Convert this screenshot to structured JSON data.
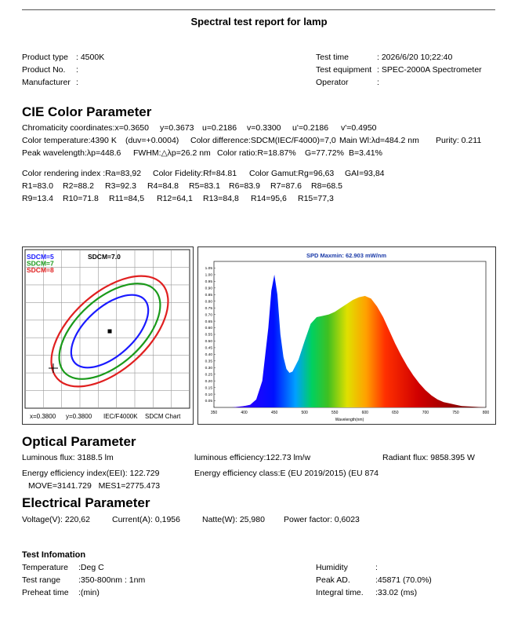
{
  "header": {
    "title": "Spectral test report for lamp"
  },
  "info": {
    "rows": [
      [
        "Product type",
        ": 4500K",
        "Test time",
        ": 2026/6/20 10;22:40"
      ],
      [
        "Product No.",
        ":",
        "Test equipment",
        ": SPEC-2000A Spectrometer"
      ],
      [
        "Manufacturer",
        ":",
        "Operator",
        ":"
      ]
    ]
  },
  "cie": {
    "heading": "CIE Color Parameter",
    "lines": [
      [
        "Chromaticity coordinates:x=0.3650",
        "y=0.3673",
        "u=0.2186",
        "v=0.3300",
        "u'=0.2186",
        "v'=0.4950"
      ],
      [
        "Color temperature:4390 K",
        "(duv=+0.0004)",
        "Color difference:SDCM(IEC/F4000)=7,0",
        "Main Wl:λd=484.2 nm",
        "Purity: 0.211"
      ],
      [
        "Peak wavelength:λp=448.6",
        "FWHM:△λp=26.2 nm",
        "Color ratio:R=18.87%",
        "G=77.72%",
        "B=3.41%"
      ],
      [
        "Color rendering index :Ra=83,92",
        "Color Fidelity:Rf=84.81",
        "Color Gamut:Rg=96,63",
        "GAI=93,84"
      ],
      [
        "R1=83.0",
        "R2=88.2",
        "R3=92.3",
        "R4=84.8",
        "R5=83.1",
        "R6=83.9",
        "R7=87.6",
        "R8=68.5"
      ],
      [
        "R9=13.4",
        "R10=71.8",
        "R11=84,5",
        "R12=64,1",
        "R13=84,8",
        "R14=95,6",
        "R15=77,3"
      ]
    ]
  },
  "sdcm": {
    "legend": [
      {
        "name": "SDCM=5",
        "color": "#1a1aff"
      },
      {
        "name": "SDCM=7",
        "color": "#1a9a1a"
      },
      {
        "name": "SDCM=8",
        "color": "#e02020"
      }
    ],
    "result": "SDCM=7.0",
    "footer": [
      "x=0.3800",
      "y=0.3800",
      "IEC/F4000K",
      "SDCM Chart"
    ]
  },
  "chart_data": {
    "type": "area",
    "title": "SPD Maxmin: 62.903 mW/nm",
    "x_label": "Wavelength(nm)",
    "x": [
      350,
      380,
      400,
      410,
      420,
      430,
      440,
      445,
      450,
      455,
      460,
      465,
      470,
      475,
      480,
      490,
      500,
      510,
      520,
      530,
      540,
      550,
      560,
      570,
      580,
      590,
      600,
      610,
      620,
      630,
      640,
      650,
      660,
      670,
      680,
      690,
      700,
      710,
      720,
      730,
      740,
      750,
      760,
      780,
      800
    ],
    "values": [
      0,
      0,
      0.01,
      0.02,
      0.06,
      0.2,
      0.6,
      0.88,
      1.0,
      0.85,
      0.55,
      0.38,
      0.29,
      0.26,
      0.27,
      0.36,
      0.5,
      0.63,
      0.68,
      0.69,
      0.7,
      0.72,
      0.75,
      0.78,
      0.81,
      0.83,
      0.84,
      0.82,
      0.76,
      0.68,
      0.58,
      0.48,
      0.39,
      0.31,
      0.24,
      0.18,
      0.13,
      0.09,
      0.06,
      0.04,
      0.03,
      0.02,
      0.01,
      0.005,
      0
    ],
    "xlim": [
      350,
      800
    ],
    "ylim": [
      0,
      1.1
    ],
    "xticks": [
      350,
      400,
      450,
      500,
      550,
      600,
      650,
      700,
      750,
      800
    ],
    "yticks": [
      0.05,
      {
        "value": 0.1,
        "label": "0.10"
      },
      0.15,
      {
        "value": 0.2,
        "label": "0.20"
      },
      0.25,
      {
        "value": 0.3,
        "label": "0.30"
      },
      0.35,
      {
        "value": 0.4,
        "label": "0.40"
      },
      0.45,
      {
        "value": 0.5,
        "label": "0.50"
      },
      0.55,
      {
        "value": 0.6,
        "label": "0.60"
      },
      0.65,
      {
        "value": 0.7,
        "label": "0.70"
      },
      0.75,
      {
        "value": 0.8,
        "label": "0.80"
      },
      0.85,
      {
        "value": 0.9,
        "label": "0.90"
      },
      0.95,
      {
        "value": 1.0,
        "label": "1.00"
      },
      1.05
    ]
  },
  "optical": {
    "heading": "Optical Parameter",
    "lines": [
      [
        "Luminous flux: 3188.5 lm",
        "luminous efficiency:122.73 lm/w",
        "Radiant flux: 9858.395 W"
      ],
      [
        "Energy efficiency index(EEI): 122.729",
        "Energy efficiency class:E (EU 2019/2015) (EU 874"
      ],
      [
        "MOVE=3141.729   MES1=2775.473"
      ]
    ]
  },
  "electrical": {
    "heading": "Electrical Parameter",
    "line": [
      "Voltage(V): 220,62",
      "Current(A): 0,1956",
      "Natte(W): 25,980",
      "Power factor: 0,6023"
    ]
  },
  "test_info": {
    "heading": "Test Infomation",
    "rows": [
      [
        "Temperature",
        ":Deg C",
        "Humidity",
        ":"
      ],
      [
        "Test range",
        ":350-800nm : 1nm",
        "Peak AD.",
        ":45871 (70.0%)"
      ],
      [
        "Preheat time",
        ":(min)",
        "Integral time.",
        ":33.02 (ms)"
      ]
    ]
  }
}
